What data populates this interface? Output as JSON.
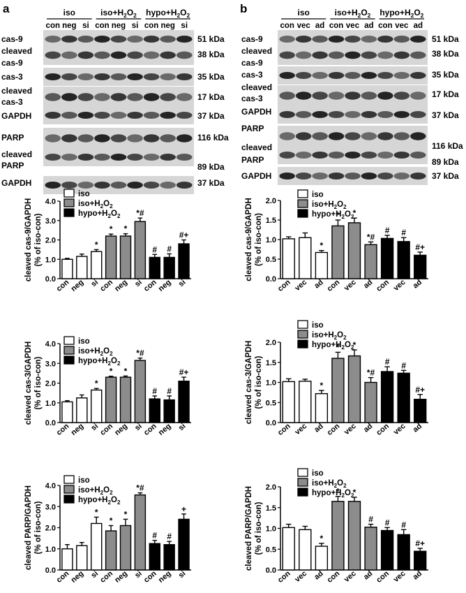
{
  "panels": [
    {
      "letter": "a",
      "blot": {
        "groups": [
          "iso",
          "iso+H2O2",
          "hypo+H2O2"
        ],
        "lanes": [
          "con",
          "neg",
          "si",
          "con",
          "neg",
          "si",
          "con",
          "neg",
          "si"
        ],
        "rows": [
          {
            "label": [
              "cas-9"
            ],
            "kda": "51 kDa"
          },
          {
            "label": [
              "cleaved",
              "cas-9"
            ],
            "kda": "38 kDa"
          },
          {
            "label": [
              "cas-3"
            ],
            "kda": "35 kDa"
          },
          {
            "label": [
              "cleaved",
              "cas-3"
            ],
            "kda": "17 kDa"
          },
          {
            "label": [
              "GAPDH"
            ],
            "kda": "37 kDa"
          },
          {
            "label": [
              "PARP"
            ],
            "kda": "116 kDa"
          },
          {
            "label": [
              "cleaved",
              "PARP"
            ],
            "kda": "89 kDa"
          },
          {
            "label": [
              "GAPDH"
            ],
            "kda": "37 kDa"
          }
        ]
      }
    },
    {
      "letter": "b",
      "blot": {
        "groups": [
          "iso",
          "iso+H2O2",
          "hypo+H2O2"
        ],
        "lanes": [
          "con",
          "vec",
          "ad",
          "con",
          "vec",
          "ad",
          "con",
          "vec",
          "ad"
        ],
        "rows": [
          {
            "label": [
              "cas-9"
            ],
            "kda": "51 kDa"
          },
          {
            "label": [
              "cleaved",
              "cas-9"
            ],
            "kda": "38 kDa"
          },
          {
            "label": [
              "cas-3"
            ],
            "kda": "35 kDa"
          },
          {
            "label": [
              "cleaved",
              "cas-3"
            ],
            "kda": "17 kDa"
          },
          {
            "label": [
              "GAPDH"
            ],
            "kda": "37 kDa"
          },
          {
            "label": [
              "PARP"
            ],
            "kda": "116 kDa"
          },
          {
            "label": [
              "cleaved",
              "PARP"
            ],
            "kda": "89 kDa"
          },
          {
            "label": [
              "GAPDH"
            ],
            "kda": "37 kDa"
          }
        ]
      }
    }
  ],
  "legend": [
    "iso",
    "iso+H2O2",
    "hypo+H2O2"
  ],
  "colors": {
    "iso": "#ffffff",
    "iso+H2O2": "#8c8c8c",
    "hypo+H2O2": "#000000"
  },
  "chart_data": [
    {
      "type": "bar",
      "panel": "a",
      "ylabel": "cleaved cas-9/GAPDH",
      "ylabel2": "(% of iso-con)",
      "ylim": [
        0,
        4.0
      ],
      "yticks": [
        "0.0",
        "1.0",
        "2.0",
        "3.0",
        "4.0"
      ],
      "categories": [
        "con",
        "neg",
        "si",
        "con",
        "neg",
        "si",
        "con",
        "neg",
        "si"
      ],
      "groups": [
        "iso",
        "iso",
        "iso",
        "iso+H2O2",
        "iso+H2O2",
        "iso+H2O2",
        "hypo+H2O2",
        "hypo+H2O2",
        "hypo+H2O2"
      ],
      "values": [
        1.0,
        1.15,
        1.4,
        2.2,
        2.2,
        2.95,
        1.1,
        1.1,
        1.8
      ],
      "errors": [
        0.05,
        0.12,
        0.1,
        0.1,
        0.12,
        0.18,
        0.15,
        0.18,
        0.2
      ],
      "annotations": [
        "",
        "",
        "*",
        "*",
        "*",
        "*#",
        "#",
        "#",
        "#+"
      ]
    },
    {
      "type": "bar",
      "panel": "a",
      "ylabel": "cleaved cas-3/GAPDH",
      "ylabel2": "(% of iso-con)",
      "ylim": [
        0,
        4.0
      ],
      "yticks": [
        "0.0",
        "1.0",
        "2.0",
        "3.0",
        "4.0"
      ],
      "categories": [
        "con",
        "neg",
        "si",
        "con",
        "neg",
        "si",
        "con",
        "neg",
        "si"
      ],
      "groups": [
        "iso",
        "iso",
        "iso",
        "iso+H2O2",
        "iso+H2O2",
        "iso+H2O2",
        "hypo+H2O2",
        "hypo+H2O2",
        "hypo+H2O2"
      ],
      "values": [
        1.05,
        1.25,
        1.65,
        2.3,
        2.3,
        3.15,
        1.2,
        1.15,
        2.1
      ],
      "errors": [
        0.06,
        0.15,
        0.08,
        0.05,
        0.06,
        0.12,
        0.15,
        0.2,
        0.2
      ],
      "annotations": [
        "",
        "",
        "*",
        "*",
        "*",
        "*#",
        "#",
        "#",
        "#+"
      ]
    },
    {
      "type": "bar",
      "panel": "a",
      "ylabel": "cleaved PARP/GAPDH",
      "ylabel2": "(% of iso-con)",
      "ylim": [
        0,
        4.0
      ],
      "yticks": [
        "0.0",
        "1.0",
        "2.0",
        "3.0",
        "4.0"
      ],
      "categories": [
        "con",
        "neg",
        "si",
        "con",
        "neg",
        "si",
        "con",
        "neg",
        "si"
      ],
      "groups": [
        "iso",
        "iso",
        "iso",
        "iso+H2O2",
        "iso+H2O2",
        "iso+H2O2",
        "hypo+H2O2",
        "hypo+H2O2",
        "hypo+H2O2"
      ],
      "values": [
        1.0,
        1.15,
        2.2,
        1.85,
        2.1,
        3.55,
        1.25,
        1.2,
        2.4
      ],
      "errors": [
        0.2,
        0.15,
        0.3,
        0.25,
        0.3,
        0.1,
        0.15,
        0.15,
        0.25
      ],
      "annotations": [
        "",
        "",
        "*",
        "*",
        "*",
        "*#",
        "#",
        "#",
        "+"
      ]
    },
    {
      "type": "bar",
      "panel": "b",
      "ylabel": "cleaved cas-9/GAPDH",
      "ylabel2": "(% of iso-con)",
      "ylim": [
        0,
        2.0
      ],
      "yticks": [
        "0.0",
        "0.5",
        "1.0",
        "1.5",
        "2.0"
      ],
      "categories": [
        "con",
        "vec",
        "ad",
        "con",
        "vec",
        "ad",
        "con",
        "vec",
        "ad"
      ],
      "groups": [
        "iso",
        "iso",
        "iso",
        "iso+H2O2",
        "iso+H2O2",
        "iso+H2O2",
        "hypo+H2O2",
        "hypo+H2O2",
        "hypo+H2O2"
      ],
      "values": [
        1.02,
        1.05,
        0.67,
        1.35,
        1.43,
        0.87,
        1.03,
        0.95,
        0.6
      ],
      "errors": [
        0.05,
        0.12,
        0.05,
        0.15,
        0.12,
        0.07,
        0.08,
        0.1,
        0.08
      ],
      "annotations": [
        "",
        "",
        "*",
        "*",
        "*",
        "*#",
        "#",
        "#",
        "#+"
      ]
    },
    {
      "type": "bar",
      "panel": "b",
      "ylabel": "cleaved cas-3/GAPDH",
      "ylabel2": "(% of iso-con)",
      "ylim": [
        0,
        2.0
      ],
      "yticks": [
        "0.0",
        "0.5",
        "1.0",
        "1.5",
        "2.0"
      ],
      "categories": [
        "con",
        "vec",
        "ad",
        "con",
        "vec",
        "ad",
        "con",
        "vec",
        "ad"
      ],
      "groups": [
        "iso",
        "iso",
        "iso",
        "iso+H2O2",
        "iso+H2O2",
        "iso+H2O2",
        "hypo+H2O2",
        "hypo+H2O2",
        "hypo+H2O2"
      ],
      "values": [
        1.02,
        1.03,
        0.72,
        1.6,
        1.66,
        1.0,
        1.27,
        1.23,
        0.58
      ],
      "errors": [
        0.07,
        0.05,
        0.08,
        0.15,
        0.15,
        0.12,
        0.12,
        0.07,
        0.12
      ],
      "annotations": [
        "",
        "",
        "*",
        "*",
        "*",
        "*#",
        "#",
        "#",
        "#+"
      ]
    },
    {
      "type": "bar",
      "panel": "b",
      "ylabel": "cleaved PARP/GAPDH",
      "ylabel2": "(% of iso-con)",
      "ylim": [
        0,
        2.0
      ],
      "yticks": [
        "0.0",
        "0.5",
        "1.0",
        "1.5",
        "2.0"
      ],
      "categories": [
        "con",
        "vec",
        "ad",
        "con",
        "vec",
        "ad",
        "con",
        "vec",
        "ad"
      ],
      "groups": [
        "iso",
        "iso",
        "iso",
        "iso+H2O2",
        "iso+H2O2",
        "iso+H2O2",
        "hypo+H2O2",
        "hypo+H2O2",
        "hypo+H2O2"
      ],
      "values": [
        1.02,
        0.97,
        0.57,
        1.65,
        1.65,
        1.03,
        0.95,
        0.85,
        0.45
      ],
      "errors": [
        0.08,
        0.08,
        0.07,
        0.12,
        0.1,
        0.07,
        0.07,
        0.12,
        0.07
      ],
      "annotations": [
        "",
        "",
        "*",
        "*",
        "*",
        "#",
        "#",
        "#",
        "#+"
      ]
    }
  ]
}
